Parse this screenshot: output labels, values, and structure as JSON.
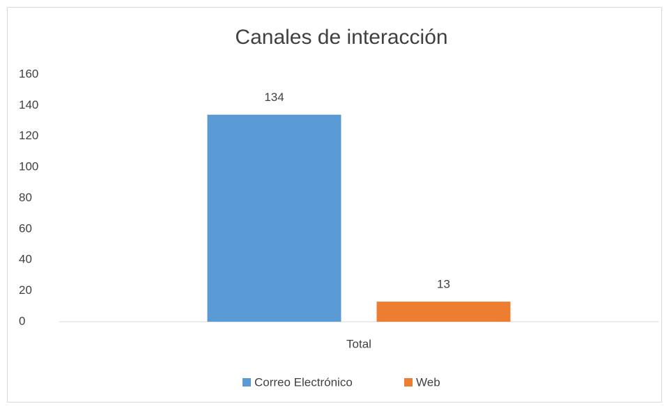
{
  "chart_data": {
    "type": "bar",
    "title": "Canales de interacción",
    "categories": [
      "Total"
    ],
    "series": [
      {
        "name": "Correo Electrónico",
        "color": "#5b9bd5",
        "values": [
          134
        ]
      },
      {
        "name": "Web",
        "color": "#ed7d31",
        "values": [
          13
        ]
      }
    ],
    "ylim": [
      0,
      160
    ],
    "yticks": [
      0,
      20,
      40,
      60,
      80,
      100,
      120,
      140,
      160
    ],
    "grid": false,
    "legend": "bottom"
  }
}
